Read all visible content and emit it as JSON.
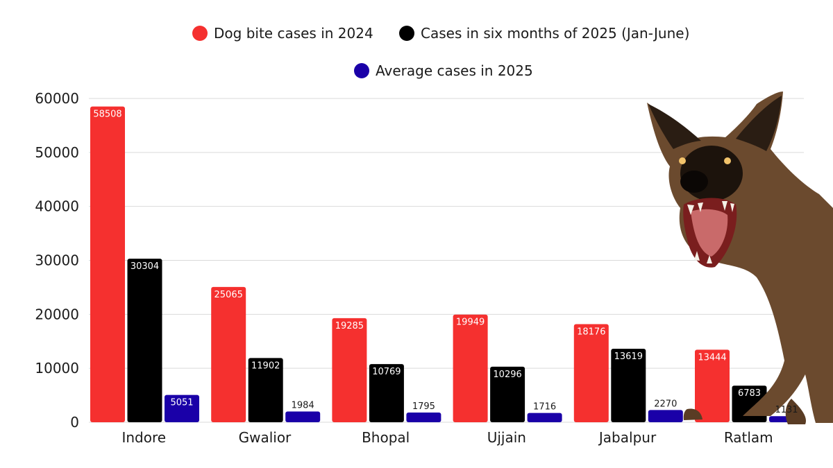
{
  "chart_data": {
    "type": "bar",
    "categories": [
      "Indore",
      "Gwalior",
      "Bhopal",
      "Ujjain",
      "Jabalpur",
      "Ratlam"
    ],
    "series": [
      {
        "name": "Dog bite cases in 2024",
        "color": "#f5302f",
        "values": [
          58508,
          25065,
          19285,
          19949,
          18176,
          13444
        ]
      },
      {
        "name": "Cases in six months of 2025 (Jan-June)",
        "color": "#000000",
        "values": [
          30304,
          11902,
          10769,
          10296,
          13619,
          6783
        ]
      },
      {
        "name": "Average cases in 2025",
        "color": "#1a00a8",
        "values": [
          5051,
          1984,
          1795,
          1716,
          2270,
          1131
        ]
      }
    ],
    "yticks": [
      "0",
      "10000",
      "20000",
      "30000",
      "40000",
      "50000",
      "60000"
    ],
    "ylim": [
      0,
      60000
    ],
    "grid": true,
    "legend_position": "top",
    "illustration": "snarling-dog-photo"
  }
}
